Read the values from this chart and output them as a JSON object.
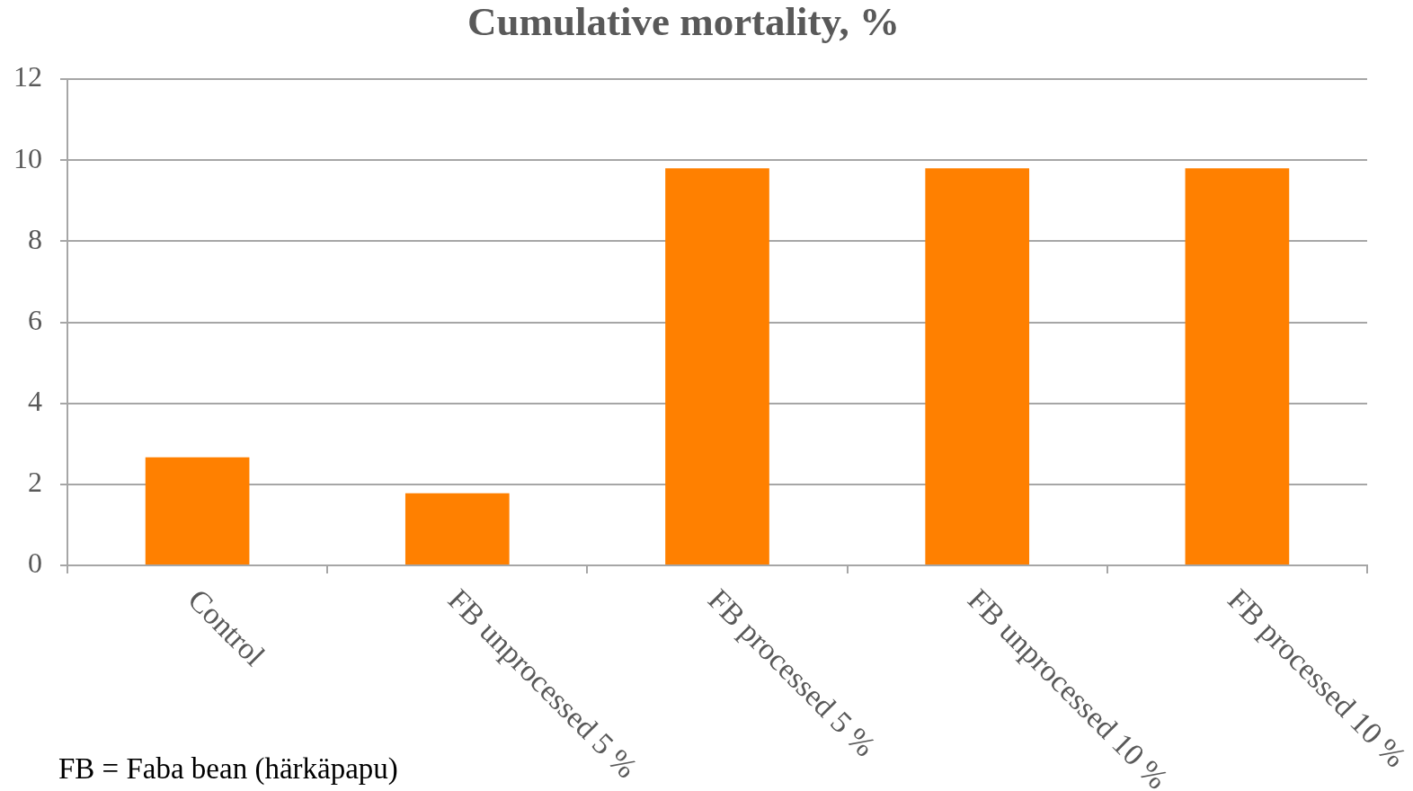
{
  "chart_data": {
    "type": "bar",
    "title": "Cumulative mortality, %",
    "categories": [
      "Control",
      "FB unprocessed 5 %",
      "FB processed 5 %",
      "FB unprocessed 10 %",
      "FB processed 10 %"
    ],
    "values": [
      2.67,
      1.78,
      9.8,
      9.8,
      9.8
    ],
    "color": "#ff8000",
    "ylim": [
      0,
      12
    ],
    "yticks": [
      0,
      2,
      4,
      6,
      8,
      10,
      12
    ],
    "grid": "y",
    "annotations": [
      "FB = Faba bean (härkäpapu)"
    ]
  }
}
